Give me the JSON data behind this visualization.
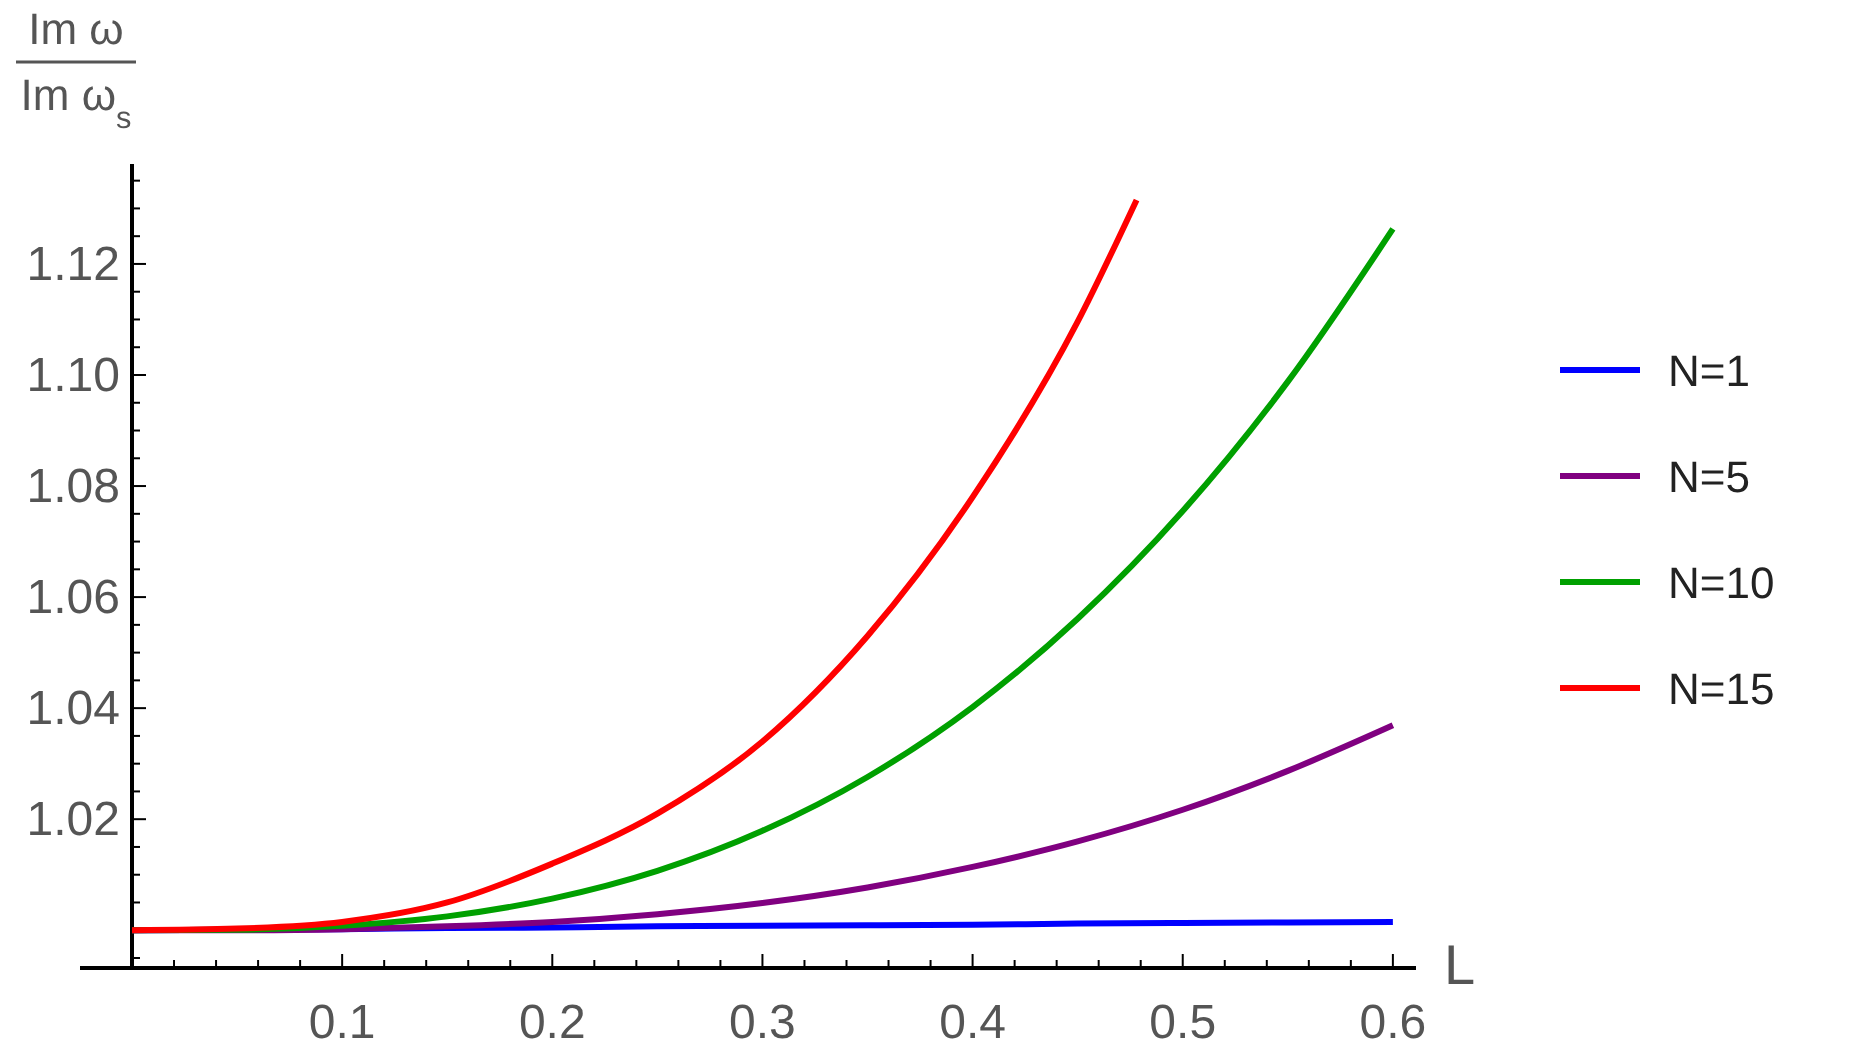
{
  "chart_data": {
    "type": "line",
    "ylabel": "Im ω\nIm ω$_{s}$",
    "xlabel": "L",
    "legend": "right",
    "grid": false,
    "marker": "none",
    "line_style": "solid",
    "x": [
      0,
      0.05,
      0.1,
      0.15,
      0.2,
      0.25,
      0.3,
      0.35,
      0.4,
      0.45,
      0.5,
      0.55,
      0.6
    ],
    "series": [
      {
        "name": "N=1",
        "color": "#0000ff",
        "values": [
          1,
          1.0001,
          1.0002,
          1.0004,
          1.0005,
          1.0007,
          1.0008,
          1.0009,
          1.001,
          1.0012,
          1.0013,
          1.0014,
          1.0015
        ]
      },
      {
        "name": "N=5",
        "color": "#800080",
        "values": [
          1,
          1.0,
          1.0002,
          1.0007,
          1.0015,
          1.0029,
          1.0049,
          1.0077,
          1.0114,
          1.016,
          1.0217,
          1.0287,
          1.0369
        ]
      },
      {
        "name": "N=10",
        "color": "#00a000",
        "values": [
          1,
          1.0001,
          1.0008,
          1.0025,
          1.0057,
          1.0107,
          1.0179,
          1.0276,
          1.0402,
          1.0561,
          1.0755,
          1.0988,
          1.1263
        ]
      },
      {
        "name": "N=15",
        "color": "#ff0000",
        "x": [
          0,
          0.05,
          0.1,
          0.15,
          0.2,
          0.25,
          0.3,
          0.35,
          0.4,
          0.45,
          0.478
        ],
        "values": [
          1,
          1.0003,
          1.0015,
          1.005,
          1.012,
          1.021,
          1.034,
          1.053,
          1.078,
          1.1096,
          1.1315
        ]
      }
    ],
    "xlim": [
      0,
      0.611
    ],
    "ylim": [
      0.9932,
      1.138
    ],
    "xticks": [
      {
        "value": 0.02,
        "label": null
      },
      {
        "value": 0.04,
        "label": null
      },
      {
        "value": 0.06,
        "label": null
      },
      {
        "value": 0.08,
        "label": null
      },
      0.1,
      {
        "value": 0.12,
        "label": null
      },
      {
        "value": 0.14,
        "label": null
      },
      {
        "value": 0.16,
        "label": null
      },
      {
        "value": 0.18,
        "label": null
      },
      0.2,
      {
        "value": 0.22,
        "label": null
      },
      {
        "value": 0.24,
        "label": null
      },
      {
        "value": 0.26,
        "label": null
      },
      {
        "value": 0.28,
        "label": null
      },
      0.3,
      {
        "value": 0.32,
        "label": null
      },
      {
        "value": 0.34,
        "label": null
      },
      {
        "value": 0.36,
        "label": null
      },
      {
        "value": 0.38,
        "label": null
      },
      0.4,
      {
        "value": 0.42,
        "label": null
      },
      {
        "value": 0.44,
        "label": null
      },
      {
        "value": 0.46,
        "label": null
      },
      {
        "value": 0.48,
        "label": null
      },
      0.5,
      {
        "value": 0.52,
        "label": null
      },
      {
        "value": 0.54,
        "label": null
      },
      {
        "value": 0.56,
        "label": null
      },
      {
        "value": 0.58,
        "label": null
      },
      0.6
    ],
    "yticks": [
      {
        "value": 0.995,
        "label": null
      },
      {
        "value": 1.0,
        "label": null
      },
      {
        "value": 1.005,
        "label": null
      },
      {
        "value": 1.01,
        "label": null
      },
      {
        "value": 1.015,
        "label": null
      },
      {
        "value": 1.02,
        "label": "1.02"
      },
      {
        "value": 1.025,
        "label": null
      },
      {
        "value": 1.03,
        "label": null
      },
      {
        "value": 1.035,
        "label": null
      },
      {
        "value": 1.04,
        "label": "1.04"
      },
      {
        "value": 1.045,
        "label": null
      },
      {
        "value": 1.05,
        "label": null
      },
      {
        "value": 1.055,
        "label": null
      },
      {
        "value": 1.06,
        "label": "1.06"
      },
      {
        "value": 1.065,
        "label": null
      },
      {
        "value": 1.07,
        "label": null
      },
      {
        "value": 1.075,
        "label": null
      },
      {
        "value": 1.08,
        "label": "1.08"
      },
      {
        "value": 1.085,
        "label": null
      },
      {
        "value": 1.09,
        "label": null
      },
      {
        "value": 1.095,
        "label": null
      },
      {
        "value": 1.1,
        "label": "1.10"
      },
      {
        "value": 1.105,
        "label": null
      },
      {
        "value": 1.11,
        "label": null
      },
      {
        "value": 1.115,
        "label": null
      },
      {
        "value": 1.12,
        "label": "1.12"
      },
      {
        "value": 1.125,
        "label": null
      },
      {
        "value": 1.13,
        "label": null
      },
      {
        "value": 1.135,
        "label": null
      }
    ]
  }
}
